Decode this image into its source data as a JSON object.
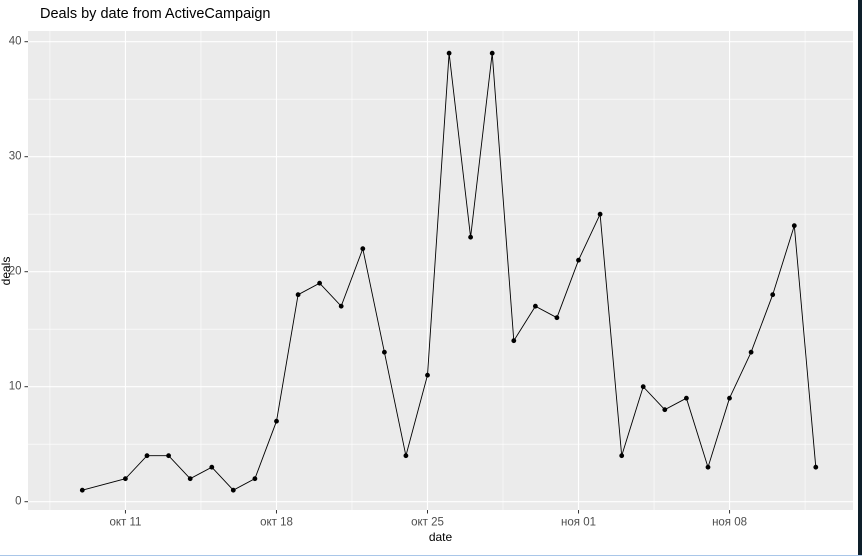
{
  "window": {
    "right_border_color": "#0e1f2a",
    "bottom_line_color": "#a9c6e8"
  },
  "chart": {
    "title": "Deals by date from ActiveCampaign",
    "xlabel": "date",
    "ylabel": "deals"
  },
  "chart_data": {
    "type": "line",
    "title": "Deals by date from ActiveCampaign",
    "xlabel": "date",
    "ylabel": "deals",
    "legend": "none",
    "grid": "on",
    "style": "ggplot2-grey",
    "colors": {
      "panel_background": "#ebebeb",
      "grid_major": "#ffffff",
      "grid_minor": "#ffffff",
      "line": "#000000",
      "point": "#000000",
      "tick_text": "#4d4d4d",
      "tick_mark": "#333333"
    },
    "y_ticks": [
      0,
      10,
      20,
      30,
      40
    ],
    "ylim_display": [
      -0.9,
      40.9
    ],
    "x_ticks": [
      {
        "label": "окт 11",
        "day": 2
      },
      {
        "label": "окт 18",
        "day": 9
      },
      {
        "label": "окт 25",
        "day": 16
      },
      {
        "label": "ноя 01",
        "day": 23
      },
      {
        "label": "ноя 08",
        "day": 30
      }
    ],
    "points": [
      {
        "date": "окт 09",
        "day": 0,
        "value": 1
      },
      {
        "date": "окт 11",
        "day": 2,
        "value": 2
      },
      {
        "date": "окт 12",
        "day": 3,
        "value": 4
      },
      {
        "date": "окт 13",
        "day": 4,
        "value": 4
      },
      {
        "date": "окт 14",
        "day": 5,
        "value": 2
      },
      {
        "date": "окт 15",
        "day": 6,
        "value": 3
      },
      {
        "date": "окт 16",
        "day": 7,
        "value": 1
      },
      {
        "date": "окт 17",
        "day": 8,
        "value": 2
      },
      {
        "date": "окт 18",
        "day": 9,
        "value": 7
      },
      {
        "date": "окт 19",
        "day": 10,
        "value": 18
      },
      {
        "date": "окт 20",
        "day": 11,
        "value": 19
      },
      {
        "date": "окт 21",
        "day": 12,
        "value": 17
      },
      {
        "date": "окт 22",
        "day": 13,
        "value": 22
      },
      {
        "date": "окт 23",
        "day": 14,
        "value": 13
      },
      {
        "date": "окт 24",
        "day": 15,
        "value": 4
      },
      {
        "date": "окт 25",
        "day": 16,
        "value": 11
      },
      {
        "date": "окт 26",
        "day": 17,
        "value": 39
      },
      {
        "date": "окт 27",
        "day": 18,
        "value": 23
      },
      {
        "date": "окт 28",
        "day": 19,
        "value": 39
      },
      {
        "date": "окт 29",
        "day": 20,
        "value": 14
      },
      {
        "date": "окт 30",
        "day": 21,
        "value": 17
      },
      {
        "date": "окт 31",
        "day": 22,
        "value": 16
      },
      {
        "date": "ноя 01",
        "day": 23,
        "value": 21
      },
      {
        "date": "ноя 02",
        "day": 24,
        "value": 25
      },
      {
        "date": "ноя 03",
        "day": 25,
        "value": 4
      },
      {
        "date": "ноя 04",
        "day": 26,
        "value": 10
      },
      {
        "date": "ноя 05",
        "day": 27,
        "value": 8
      },
      {
        "date": "ноя 06",
        "day": 28,
        "value": 9
      },
      {
        "date": "ноя 07",
        "day": 29,
        "value": 3
      },
      {
        "date": "ноя 08",
        "day": 30,
        "value": 9
      },
      {
        "date": "ноя 09",
        "day": 31,
        "value": 13
      },
      {
        "date": "ноя 10",
        "day": 32,
        "value": 18
      },
      {
        "date": "ноя 11",
        "day": 33,
        "value": 24
      },
      {
        "date": "ноя 12",
        "day": 34,
        "value": 3
      }
    ]
  }
}
